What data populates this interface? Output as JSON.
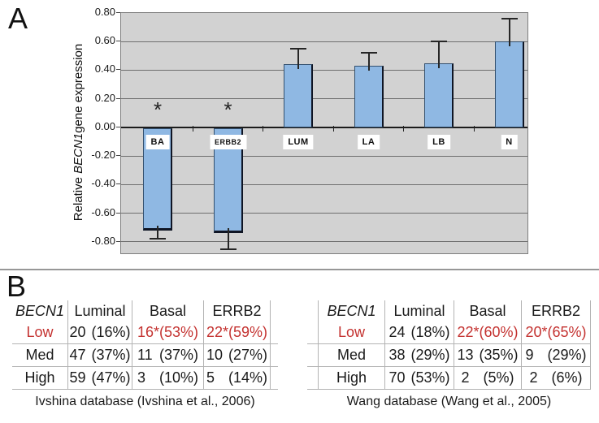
{
  "panel_a": {
    "label": "A",
    "y_axis": {
      "title_pre": "Relative ",
      "title_gene": "BECN1",
      "title_post": "gene expression",
      "tick_labels": [
        "0.80",
        "0.60",
        "0.40",
        "0.20",
        "0.00",
        "-0.20",
        "-0.40",
        "-0.60",
        "-0.80"
      ]
    },
    "significance_marker": "*"
  },
  "panel_b": {
    "label": "B"
  },
  "chart_data": [
    {
      "type": "bar",
      "title": "",
      "xlabel": "",
      "ylabel": "Relative BECN1 gene expression",
      "categories": [
        "BA",
        "ERBB2",
        "LUM",
        "LA",
        "LB",
        "N"
      ],
      "values": [
        -0.72,
        -0.74,
        0.44,
        0.43,
        0.45,
        0.6
      ],
      "error_up": [
        0.06,
        0.11,
        0.11,
        0.09,
        0.15,
        0.16
      ],
      "significant": [
        true,
        true,
        false,
        false,
        false,
        false
      ],
      "ylim": [
        -0.88,
        0.8
      ],
      "ytick_step": 0.2,
      "grid": true,
      "legend": "none",
      "bar_color": "#8fb8e3",
      "plot_bg": "#d2d2d2"
    },
    {
      "type": "table",
      "caption": "Ivshina database (Ivshina et al., 2006)",
      "headers": [
        "BECN1",
        "Luminal",
        "Basal",
        "ERRB2"
      ],
      "rows": [
        {
          "label": "Low",
          "label_red": true,
          "cells": [
            {
              "n": "20",
              "p": "(16%)"
            },
            {
              "n": "16*",
              "p": "(53%)",
              "red": true
            },
            {
              "n": "22*",
              "p": "(59%)",
              "red": true
            }
          ]
        },
        {
          "label": "Med",
          "cells": [
            {
              "n": "47",
              "p": "(37%)"
            },
            {
              "n": "11",
              "p": "(37%)"
            },
            {
              "n": "10",
              "p": "(27%)"
            }
          ]
        },
        {
          "label": "High",
          "cells": [
            {
              "n": "59",
              "p": "(47%)"
            },
            {
              "n": "3",
              "p": "(10%)"
            },
            {
              "n": "5",
              "p": "(14%)"
            }
          ]
        }
      ]
    },
    {
      "type": "table",
      "caption": "Wang database (Wang et al., 2005)",
      "headers": [
        "BECN1",
        "Luminal",
        "Basal",
        "ERRB2"
      ],
      "rows": [
        {
          "label": "Low",
          "label_red": true,
          "cells": [
            {
              "n": "24",
              "p": "(18%)"
            },
            {
              "n": "22*",
              "p": "(60%)",
              "red": true
            },
            {
              "n": "20*",
              "p": "(65%)",
              "red": true
            }
          ]
        },
        {
          "label": "Med",
          "cells": [
            {
              "n": "38",
              "p": "(29%)"
            },
            {
              "n": "13",
              "p": "(35%)"
            },
            {
              "n": "9",
              "p": "(29%)"
            }
          ]
        },
        {
          "label": "High",
          "cells": [
            {
              "n": "70",
              "p": "(53%)"
            },
            {
              "n": "2",
              "p": "(5%)"
            },
            {
              "n": "2",
              "p": "(6%)"
            }
          ]
        }
      ]
    }
  ],
  "colors": {
    "bar_fill": "#8fb8e3",
    "bar_edge": "#0f1524",
    "plot_bg": "#d2d2d2",
    "gridline": "#6e6e6e",
    "red_text": "#c43230",
    "table_line": "#b3b3b3"
  }
}
